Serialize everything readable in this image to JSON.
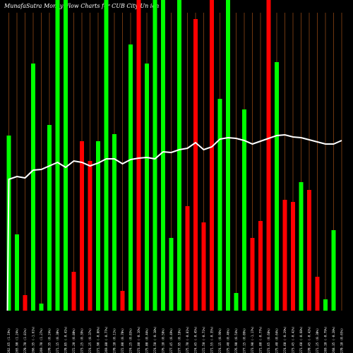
{
  "chart_data": {
    "type": "bar",
    "title": "MunafaSutra  Money Flow  Charts for CUB                         City Un                                ion",
    "colors": {
      "up": "#00ff00",
      "down": "#ff0000",
      "line": "#ffffff",
      "grid": "#8b4513",
      "background": "#000000"
    },
    "ylim": [
      0,
      440
    ],
    "line_ylim": [
      0,
      440
    ],
    "categories": [
      "262.65 (1.19%)",
      "265.90 (1.24%)",
      "270.70 (1.81%)",
      "266.35 (-1.61%)",
      "269.70 (1.27%)",
      "270.35 (0.24%)",
      "271.15 (0.30%)",
      "270.05 (-0.41%)",
      "272.20 (0.80%)",
      "273.25 (0.39%)",
      "274.25 (0.37%)",
      "271.90 (-0.86%)",
      "269.80 (-0.77%)",
      "270.10 (0.11%)",
      "272.00 (0.70%)",
      "274.25 (0.83%)",
      "273.80 (-0.16%)",
      "275.00 (0.44%)",
      "274.50 (-0.18%)",
      "276.10 (0.58%)",
      "277.45 (0.49%)",
      "277.95 (0.18%)",
      "275.70 (-0.81%)",
      "274.45 (-0.45%)",
      "272.50 (-0.71%)",
      "271.55 (-0.35%)",
      "274.15 (0.96%)",
      "275.40 (0.46%)",
      "276.90 (0.54%)",
      "277.15 (0.09%)",
      "273.90 (-1.17%)",
      "271.80 (-0.77%)",
      "273.65 (0.68%)",
      "275.40 (0.64%)",
      "274.60 (-0.29%)",
      "273.45 (-0.42%)",
      "271.60 (-0.68%)",
      "270.45 (-0.42%)",
      "271.25 (0.30%)",
      "269.10 (-0.79%)",
      "268.35 (-0.28%)",
      "270.10 (0.65%)"
    ],
    "series": [
      {
        "values": [
          248,
          108,
          22,
          350,
          10,
          263,
          440,
          440,
          55,
          240,
          212,
          240,
          440,
          250,
          28,
          377,
          440,
          350,
          440,
          440,
          103,
          440,
          148,
          413,
          125,
          440,
          300,
          440,
          25,
          285,
          103,
          127,
          440,
          352,
          157,
          154,
          182,
          171,
          48,
          16,
          114,
          0
        ]
      },
      {
        "values": [
          186,
          190,
          188,
          199,
          200,
          205,
          210,
          203,
          212,
          210,
          205,
          209,
          215,
          215,
          208,
          214,
          216,
          217,
          215,
          225,
          224,
          228,
          230,
          238,
          228,
          232,
          243,
          245,
          244,
          241,
          236,
          240,
          244,
          248,
          249,
          246,
          245,
          242,
          239,
          236,
          236,
          241
        ]
      }
    ],
    "up_down": [
      "up",
      "up",
      "down",
      "up",
      "up",
      "up",
      "up",
      "up",
      "down",
      "down",
      "down",
      "up",
      "up",
      "up",
      "down",
      "up",
      "down",
      "up",
      "up",
      "up",
      "up",
      "up",
      "down",
      "down",
      "down",
      "down",
      "up",
      "up",
      "up",
      "up",
      "down",
      "down",
      "down",
      "up",
      "down",
      "down",
      "up",
      "down",
      "down",
      "up",
      "up",
      "down"
    ]
  }
}
